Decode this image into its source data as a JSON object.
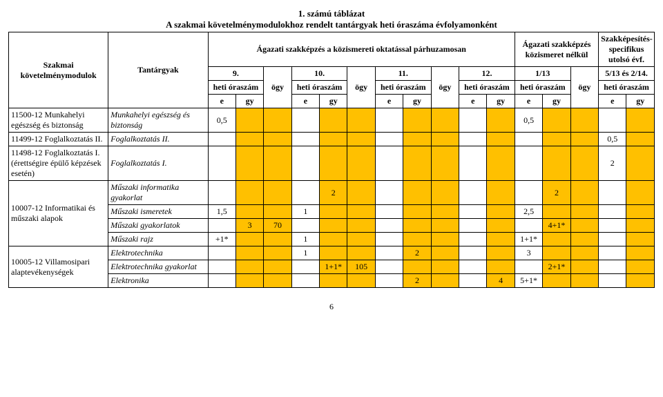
{
  "title1": "1. számú táblázat",
  "title2": "A szakmai követelménymodulokhoz rendelt tantárgyak heti óraszáma évfolyamonként",
  "headers": {
    "mod": "Szakmai követelménymodulok",
    "subj": "Tantárgyak",
    "group_left": "Ágazati szakképzés a közismereti oktatással párhuzamosan",
    "group_right": "Ágazati szakképzés közismeret nélkül",
    "group_spec": "Szakképesítés-specifikus utolsó évf.",
    "y9": "9.",
    "y10": "10.",
    "y11": "11.",
    "y12": "12.",
    "y113": "1/13",
    "y513": "5/13 és 2/14.",
    "heti": "heti óraszám",
    "ogy": "ögy",
    "e": "e",
    "gy": "gy"
  },
  "rows": [
    {
      "mod": "11500-12 Munkahelyi egészség és biztonság",
      "subj": "Munkahelyi egészség és biztonság",
      "cells": [
        "0,5",
        "",
        "",
        "",
        "",
        "",
        "",
        "",
        "",
        "",
        "",
        "",
        "",
        "0,5",
        "",
        "",
        "",
        ""
      ]
    },
    {
      "mod": "11499-12 Foglalkoztatás II.",
      "subj": "Foglalkoztatás II.",
      "cells": [
        "",
        "",
        "",
        "",
        "",
        "",
        "",
        "",
        "",
        "",
        "",
        "",
        "",
        "",
        "",
        "",
        "0,5",
        ""
      ]
    },
    {
      "mod": "11498-12 Foglalkoztatás I. (érettségire épülő képzések esetén)",
      "subj": "Foglalkoztatás I.",
      "cells": [
        "",
        "",
        "",
        "",
        "",
        "",
        "",
        "",
        "",
        "",
        "",
        "",
        "",
        "",
        "",
        "",
        "2",
        ""
      ]
    },
    {
      "mod": "10007-12 Informatikai és műszaki alapok",
      "subs": [
        {
          "subj": "Műszaki informatika gyakorlat",
          "cells": [
            "",
            "",
            "",
            "",
            "2",
            "",
            "",
            "",
            "",
            "",
            "",
            "",
            "",
            "",
            "2",
            "",
            "",
            ""
          ]
        },
        {
          "subj": "Műszaki ismeretek",
          "cells": [
            "1,5",
            "",
            "",
            "1",
            "",
            "",
            "",
            "",
            "",
            "",
            "",
            "",
            "",
            "2,5",
            "",
            "",
            "",
            ""
          ]
        },
        {
          "subj": "Műszaki gyakorlatok",
          "cells": [
            "",
            "3",
            "70",
            "",
            "",
            "",
            "",
            "",
            "",
            "",
            "",
            "",
            "",
            "",
            "4+1*",
            "",
            "",
            ""
          ]
        },
        {
          "subj": "Műszaki rajz",
          "cells": [
            "+1*",
            "",
            "",
            "1",
            "",
            "",
            "",
            "",
            "",
            "",
            "",
            "",
            "",
            "1+1*",
            "",
            "",
            "",
            ""
          ]
        }
      ]
    },
    {
      "mod": "10005-12 Villamosipari alaptevékenységek",
      "subs": [
        {
          "subj": "Elektrotechnika",
          "cells": [
            "",
            "",
            "",
            "1",
            "",
            "",
            "",
            "2",
            "",
            "",
            "",
            "",
            "",
            "3",
            "",
            "",
            "",
            ""
          ]
        },
        {
          "subj": "Elektrotechnika gyakorlat",
          "cells": [
            "",
            "",
            "",
            "",
            "1+1*",
            "105",
            "",
            "",
            "",
            "",
            "",
            "",
            "",
            "",
            "2+1*",
            "",
            "",
            ""
          ]
        },
        {
          "subj": "Elektronika",
          "cells": [
            "",
            "",
            "",
            "",
            "",
            "",
            "",
            "2",
            "",
            "",
            "4",
            "",
            "",
            "5+1*",
            "",
            "",
            "",
            ""
          ]
        }
      ]
    }
  ],
  "orange_indexes": [
    1,
    2,
    4,
    5,
    7,
    8,
    10,
    11,
    13,
    14,
    15,
    17
  ],
  "page_num": "6"
}
